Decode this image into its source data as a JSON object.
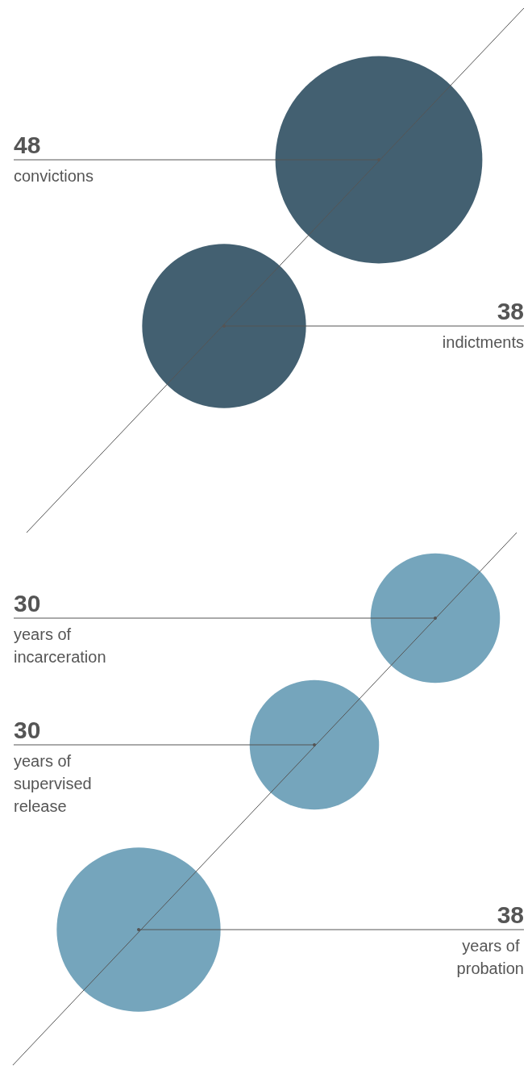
{
  "chart_data": [
    {
      "type": "other",
      "categories": [
        "convictions",
        "indictments"
      ],
      "values": [
        48,
        38
      ],
      "color": "#14384d",
      "data_labels": true
    },
    {
      "type": "other",
      "categories": [
        "years of incarceration",
        "years of supervised release",
        "years of probation"
      ],
      "values": [
        30,
        30,
        38
      ],
      "color": "#528fab",
      "data_labels": true
    }
  ]
}
